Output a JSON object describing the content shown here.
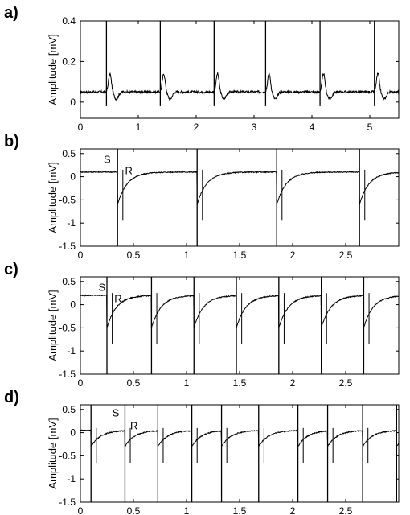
{
  "chart_data": [
    {
      "type": "line",
      "panel_label": "a)",
      "ylabel": "Amplitude [mV]",
      "xlim": [
        0,
        5.5
      ],
      "ylim": [
        -0.08,
        0.4
      ],
      "xticks": [
        0,
        1,
        2,
        3,
        4,
        5
      ],
      "xtick_labels": [
        "0",
        "1",
        "2",
        "3",
        "4",
        "5"
      ],
      "yticks": [
        0,
        0.2,
        0.4
      ],
      "ytick_labels": [
        "0",
        "0.2",
        "0.4"
      ],
      "annotations": [],
      "series": [
        {
          "waveform": "ecg",
          "baseline": 0.05,
          "beat_times": [
            0.45,
            1.38,
            2.31,
            3.2,
            4.14,
            5.08
          ]
        }
      ]
    },
    {
      "type": "line",
      "panel_label": "b)",
      "ylabel": "Amplitude [mV]",
      "xlim": [
        0,
        3.0
      ],
      "ylim": [
        -1.5,
        0.6
      ],
      "xticks": [
        0,
        0.5,
        1,
        1.5,
        2,
        2.5
      ],
      "xtick_labels": [
        "0",
        "0.5",
        "1",
        "1.5",
        "2",
        "2.5"
      ],
      "yticks": [
        -1.5,
        -1,
        -0.5,
        0,
        0.5
      ],
      "ytick_labels": [
        "-1.5",
        "-1",
        "-0.5",
        "0",
        "0.5"
      ],
      "annotations": [
        {
          "text": "S",
          "x": 0.22,
          "y": 0.3
        },
        {
          "text": "R",
          "x": 0.42,
          "y": 0.05
        }
      ],
      "series": [
        {
          "waveform": "stim",
          "baseline": 0.1,
          "min": -0.6,
          "stim_times": [
            0.35,
            1.1,
            1.85,
            2.63
          ]
        }
      ]
    },
    {
      "type": "line",
      "panel_label": "c)",
      "ylabel": "Amplitude [mV]",
      "xlim": [
        0,
        3.0
      ],
      "ylim": [
        -1.5,
        0.6
      ],
      "xticks": [
        0,
        0.5,
        1,
        1.5,
        2,
        2.5
      ],
      "xtick_labels": [
        "0",
        "0.5",
        "1",
        "1.5",
        "2",
        "2.5"
      ],
      "yticks": [
        -1.5,
        -1,
        -0.5,
        0,
        0.5
      ],
      "ytick_labels": [
        "-1.5",
        "-1",
        "-0.5",
        "0",
        "0.5"
      ],
      "annotations": [
        {
          "text": "S",
          "x": 0.17,
          "y": 0.3
        },
        {
          "text": "R",
          "x": 0.32,
          "y": 0.05
        }
      ],
      "series": [
        {
          "waveform": "stim",
          "baseline": 0.2,
          "min": -0.5,
          "stim_times": [
            0.25,
            0.67,
            1.07,
            1.47,
            1.87,
            2.27,
            2.67
          ]
        }
      ]
    },
    {
      "type": "line",
      "panel_label": "d)",
      "ylabel": "Amplitude [mV]",
      "xlim": [
        0,
        3.0
      ],
      "ylim": [
        -1.5,
        0.6
      ],
      "xticks": [
        0,
        0.5,
        1,
        1.5,
        2,
        2.5
      ],
      "xtick_labels": [
        "0",
        "0.5",
        "1",
        "1.5",
        "2",
        "2.5"
      ],
      "yticks": [
        -1.5,
        -1,
        -0.5,
        0,
        0.5
      ],
      "ytick_labels": [
        "-1.5",
        "-1",
        "-0.5",
        "0",
        "0.5"
      ],
      "annotations": [
        {
          "text": "S",
          "x": 0.3,
          "y": 0.35
        },
        {
          "text": "R",
          "x": 0.47,
          "y": 0.07
        }
      ],
      "series": [
        {
          "waveform": "stim",
          "baseline": 0.05,
          "min": -0.3,
          "stim_times": [
            0.1,
            0.42,
            0.73,
            1.05,
            1.33,
            1.68,
            2.05,
            2.33,
            2.66,
            2.98
          ]
        }
      ]
    }
  ]
}
